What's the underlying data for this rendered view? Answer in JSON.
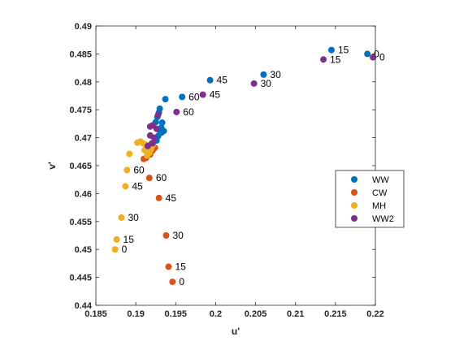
{
  "chart_data": {
    "type": "scatter",
    "xlabel": "u'",
    "ylabel": "v'",
    "xlim": [
      0.185,
      0.22
    ],
    "ylim": [
      0.44,
      0.49
    ],
    "xticks": [
      "0.185",
      "0.19",
      "0.195",
      "0.2",
      "0.205",
      "0.21",
      "0.215",
      "0.22"
    ],
    "yticks": [
      "0.44",
      "0.445",
      "0.45",
      "0.455",
      "0.46",
      "0.465",
      "0.47",
      "0.475",
      "0.48",
      "0.485",
      "0.49"
    ],
    "grid": false,
    "legend_position": "right",
    "series": [
      {
        "name": "WW",
        "color": "#0072BD",
        "points": [
          {
            "x": 0.219,
            "y": 0.485,
            "label": "0"
          },
          {
            "x": 0.2145,
            "y": 0.4857,
            "label": "15"
          },
          {
            "x": 0.206,
            "y": 0.4813,
            "label": "30"
          },
          {
            "x": 0.1993,
            "y": 0.4803,
            "label": "45"
          },
          {
            "x": 0.1958,
            "y": 0.4773,
            "label": "60"
          },
          {
            "x": 0.1937,
            "y": 0.4769
          },
          {
            "x": 0.193,
            "y": 0.4752
          },
          {
            "x": 0.1929,
            "y": 0.4745
          },
          {
            "x": 0.1927,
            "y": 0.4737
          },
          {
            "x": 0.1925,
            "y": 0.4728
          },
          {
            "x": 0.1933,
            "y": 0.4727
          },
          {
            "x": 0.1932,
            "y": 0.4718
          },
          {
            "x": 0.1929,
            "y": 0.4714
          },
          {
            "x": 0.1932,
            "y": 0.4709
          },
          {
            "x": 0.1935,
            "y": 0.4712
          },
          {
            "x": 0.1928,
            "y": 0.4703
          },
          {
            "x": 0.1926,
            "y": 0.4695
          }
        ]
      },
      {
        "name": "CW",
        "color": "#D95319",
        "points": [
          {
            "x": 0.1946,
            "y": 0.4442,
            "label": "0"
          },
          {
            "x": 0.1941,
            "y": 0.4469,
            "label": "15"
          },
          {
            "x": 0.1938,
            "y": 0.4525,
            "label": "30"
          },
          {
            "x": 0.1929,
            "y": 0.4592,
            "label": "45"
          },
          {
            "x": 0.1917,
            "y": 0.4628,
            "label": "60"
          },
          {
            "x": 0.1913,
            "y": 0.4664
          },
          {
            "x": 0.1918,
            "y": 0.467
          },
          {
            "x": 0.1921,
            "y": 0.4677
          },
          {
            "x": 0.1924,
            "y": 0.4682
          },
          {
            "x": 0.191,
            "y": 0.4662
          },
          {
            "x": 0.1915,
            "y": 0.4686
          },
          {
            "x": 0.192,
            "y": 0.469
          }
        ]
      },
      {
        "name": "MH",
        "color": "#EDB120",
        "points": [
          {
            "x": 0.1874,
            "y": 0.45,
            "label": "0"
          },
          {
            "x": 0.1876,
            "y": 0.4518,
            "label": "15"
          },
          {
            "x": 0.1882,
            "y": 0.4557,
            "label": "30"
          },
          {
            "x": 0.1887,
            "y": 0.4613,
            "label": "45"
          },
          {
            "x": 0.1889,
            "y": 0.4642,
            "label": "60"
          },
          {
            "x": 0.1892,
            "y": 0.4671
          },
          {
            "x": 0.1902,
            "y": 0.4691
          },
          {
            "x": 0.1906,
            "y": 0.4693
          },
          {
            "x": 0.1909,
            "y": 0.469
          },
          {
            "x": 0.1912,
            "y": 0.4688
          },
          {
            "x": 0.1915,
            "y": 0.4684
          },
          {
            "x": 0.1911,
            "y": 0.4678
          },
          {
            "x": 0.1917,
            "y": 0.4673
          },
          {
            "x": 0.1914,
            "y": 0.4668
          },
          {
            "x": 0.1919,
            "y": 0.4679
          },
          {
            "x": 0.1921,
            "y": 0.4686
          }
        ]
      },
      {
        "name": "WW2",
        "color": "#7E2F8E",
        "points": [
          {
            "x": 0.2197,
            "y": 0.4844,
            "label": "0"
          },
          {
            "x": 0.2135,
            "y": 0.484,
            "label": "15"
          },
          {
            "x": 0.2048,
            "y": 0.4797,
            "label": "30"
          },
          {
            "x": 0.1984,
            "y": 0.4777,
            "label": "45"
          },
          {
            "x": 0.1951,
            "y": 0.4746,
            "label": "60"
          },
          {
            "x": 0.1928,
            "y": 0.4741
          },
          {
            "x": 0.1921,
            "y": 0.4722
          },
          {
            "x": 0.1918,
            "y": 0.472
          },
          {
            "x": 0.1926,
            "y": 0.4716
          },
          {
            "x": 0.1918,
            "y": 0.4704
          },
          {
            "x": 0.1923,
            "y": 0.47
          },
          {
            "x": 0.1921,
            "y": 0.469
          },
          {
            "x": 0.1915,
            "y": 0.4685
          }
        ]
      }
    ]
  }
}
